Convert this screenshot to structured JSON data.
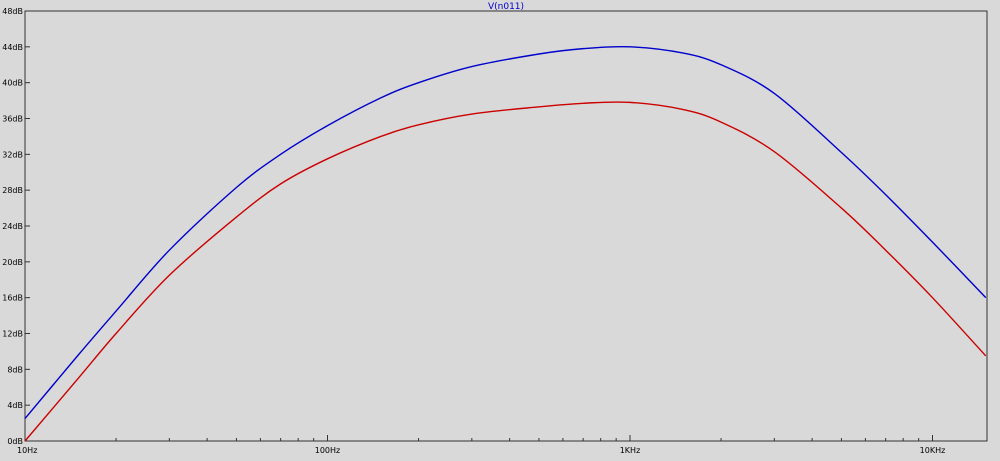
{
  "chart_data": {
    "type": "line",
    "title": "V(n011)",
    "xscale": "log",
    "yunit": "dB",
    "xlim": [
      10,
      15000
    ],
    "ylim": [
      0,
      48
    ],
    "grid": false,
    "x_tick_labels": [
      {
        "value": 10,
        "label": "10Hz"
      },
      {
        "value": 100,
        "label": "100Hz"
      },
      {
        "value": 1000,
        "label": "1KHz"
      },
      {
        "value": 10000,
        "label": "10KHz"
      }
    ],
    "y_tick_labels": [
      {
        "value": 0,
        "label": "0dB"
      },
      {
        "value": 4,
        "label": "4dB"
      },
      {
        "value": 8,
        "label": "8dB"
      },
      {
        "value": 12,
        "label": "12dB"
      },
      {
        "value": 16,
        "label": "16dB"
      },
      {
        "value": 20,
        "label": "20dB"
      },
      {
        "value": 24,
        "label": "24dB"
      },
      {
        "value": 28,
        "label": "28dB"
      },
      {
        "value": 32,
        "label": "32dB"
      },
      {
        "value": 36,
        "label": "36dB"
      },
      {
        "value": 40,
        "label": "40dB"
      },
      {
        "value": 44,
        "label": "44dB"
      },
      {
        "value": 48,
        "label": "48dB"
      }
    ],
    "series": [
      {
        "color": "#0000cc",
        "x": [
          10,
          15,
          20,
          30,
          50,
          70,
          100,
          150,
          200,
          300,
          500,
          700,
          1000,
          1500,
          2000,
          3000,
          5000,
          7000,
          10000,
          15000
        ],
        "values": [
          2.5,
          9.6,
          14.5,
          21.3,
          28.3,
          32.0,
          35.2,
          38.3,
          40.0,
          41.8,
          43.2,
          43.8,
          44.0,
          43.3,
          42.0,
          38.8,
          32.2,
          27.5,
          22.2,
          16.0
        ]
      },
      {
        "color": "#cc0000",
        "x": [
          10,
          15,
          20,
          30,
          50,
          70,
          100,
          150,
          200,
          300,
          500,
          700,
          1000,
          1500,
          2000,
          3000,
          5000,
          7000,
          10000,
          15000
        ],
        "values": [
          0.0,
          7.0,
          12.0,
          18.5,
          25.0,
          28.7,
          31.5,
          34.0,
          35.3,
          36.5,
          37.3,
          37.7,
          37.8,
          37.0,
          35.6,
          32.3,
          26.0,
          21.3,
          16.0,
          9.5
        ]
      }
    ]
  }
}
